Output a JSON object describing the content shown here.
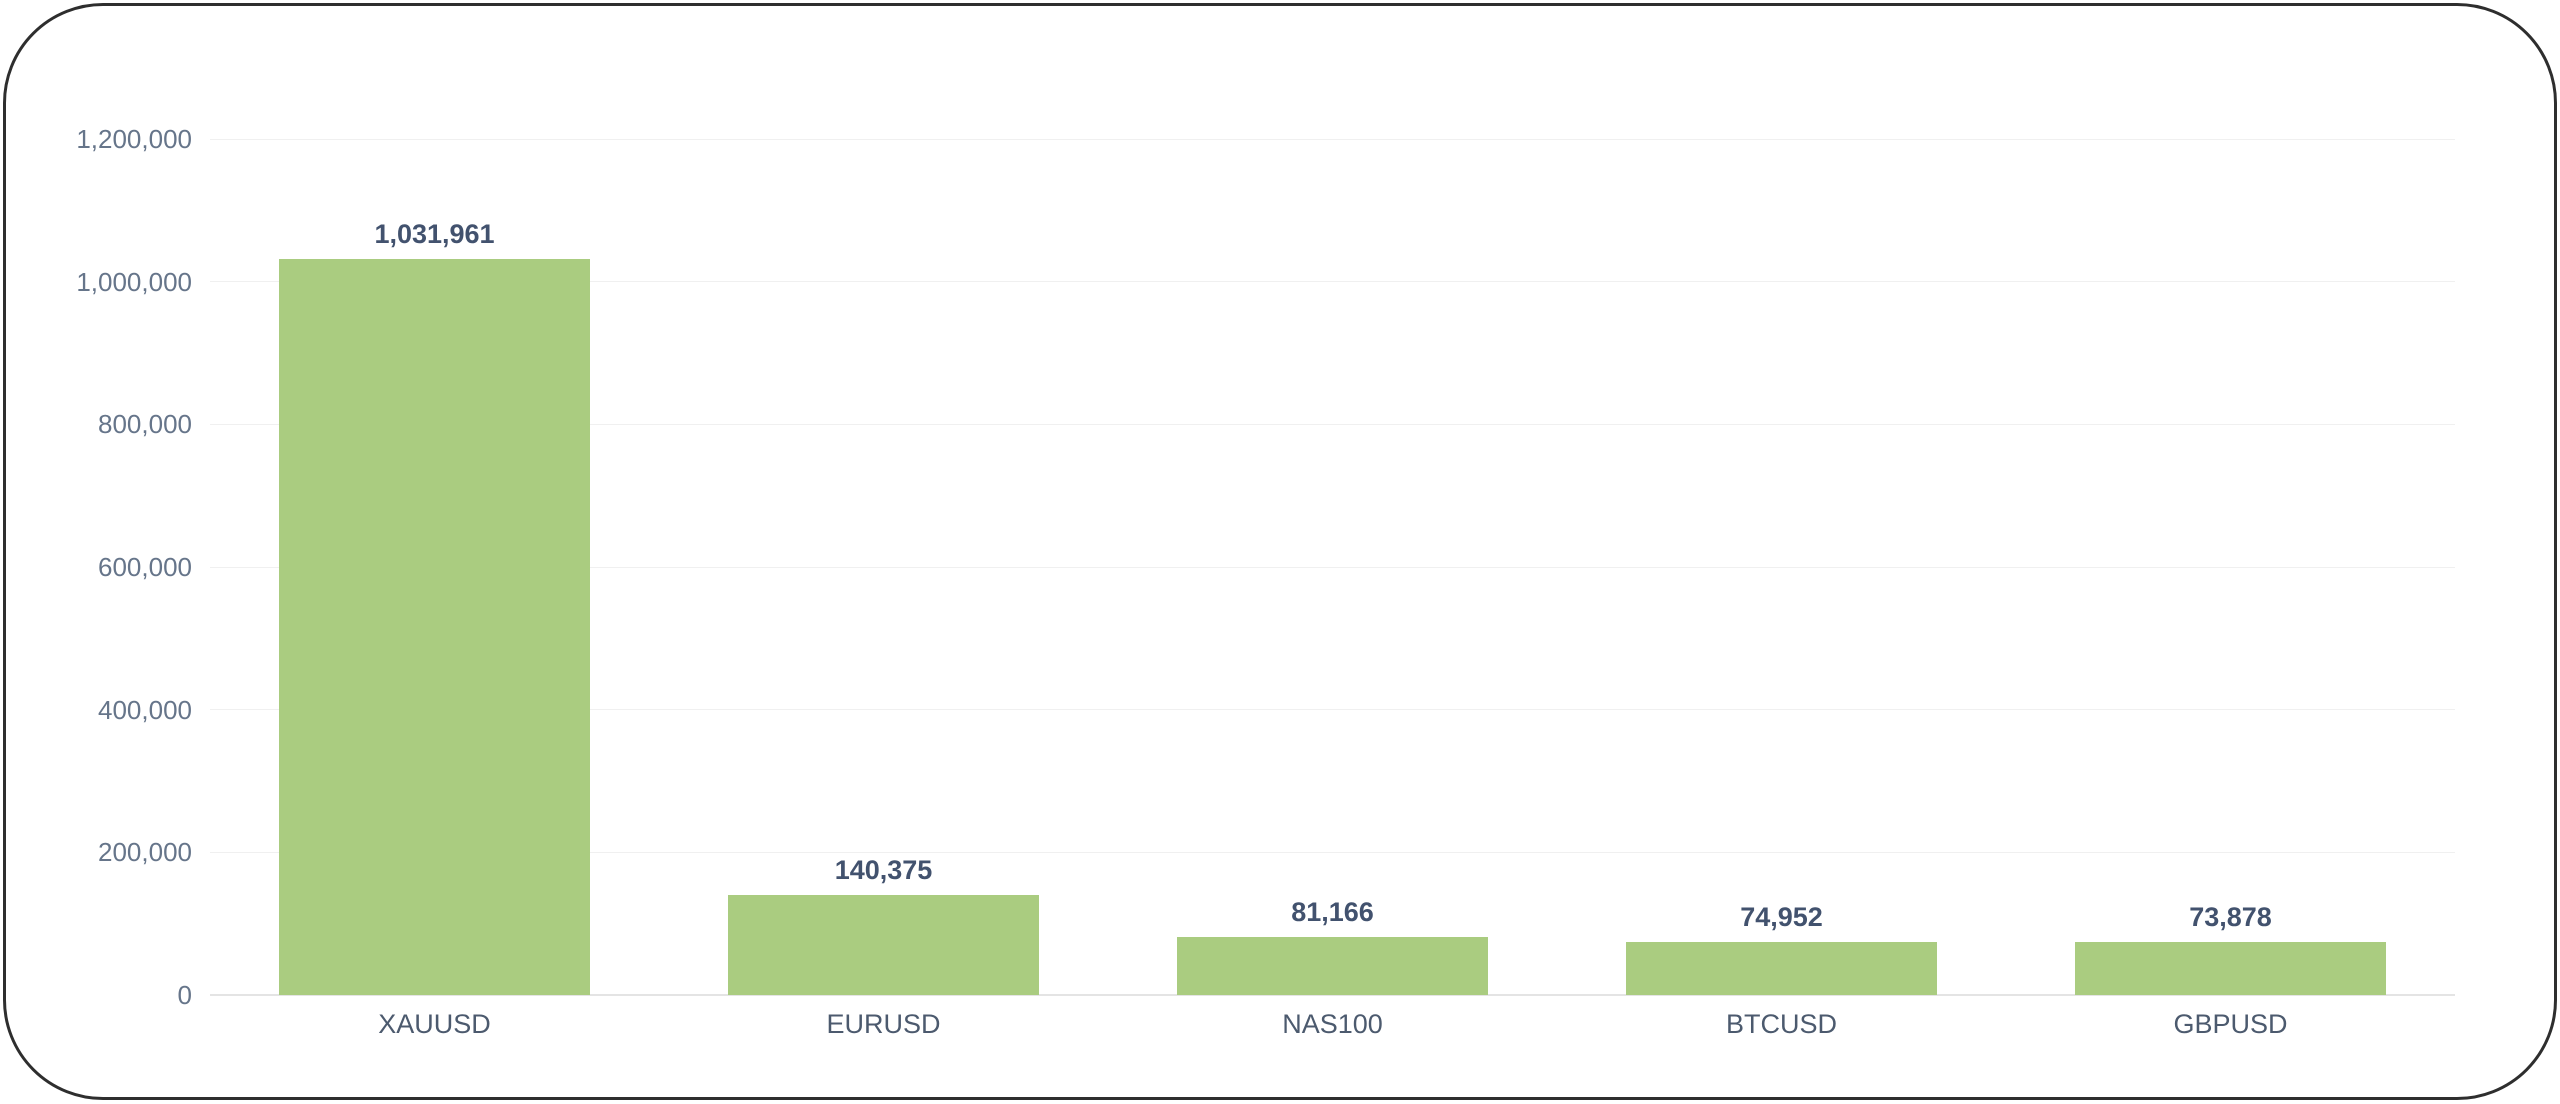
{
  "chart_data": {
    "type": "bar",
    "title": "",
    "xlabel": "",
    "ylabel": "",
    "categories": [
      "XAUUSD",
      "EURUSD",
      "NAS100",
      "BTCUSD",
      "GBPUSD"
    ],
    "values": [
      1031961,
      140375,
      81166,
      74952,
      73878
    ],
    "value_labels": [
      "1,031,961",
      "140,375",
      "81,166",
      "74,952",
      "73,878"
    ],
    "y_ticks": [
      0,
      200000,
      400000,
      600000,
      800000,
      1000000,
      1200000
    ],
    "y_tick_labels": [
      "0",
      "200,000",
      "400,000",
      "600,000",
      "800,000",
      "1,000,000",
      "1,200,000"
    ],
    "ylim": [
      0,
      1200000
    ],
    "grid": true,
    "legend": false,
    "style": {
      "bar_color": "#aacc80",
      "grid_color": "#f0f0f0",
      "zero_axis_color": "#e4e4e4",
      "y_tick_color": "#66758a",
      "x_tick_color": "#4c5a6e",
      "value_label_color": "#42526e",
      "card_border_color": "#2e2e2e",
      "background_color": "#ffffff"
    }
  }
}
